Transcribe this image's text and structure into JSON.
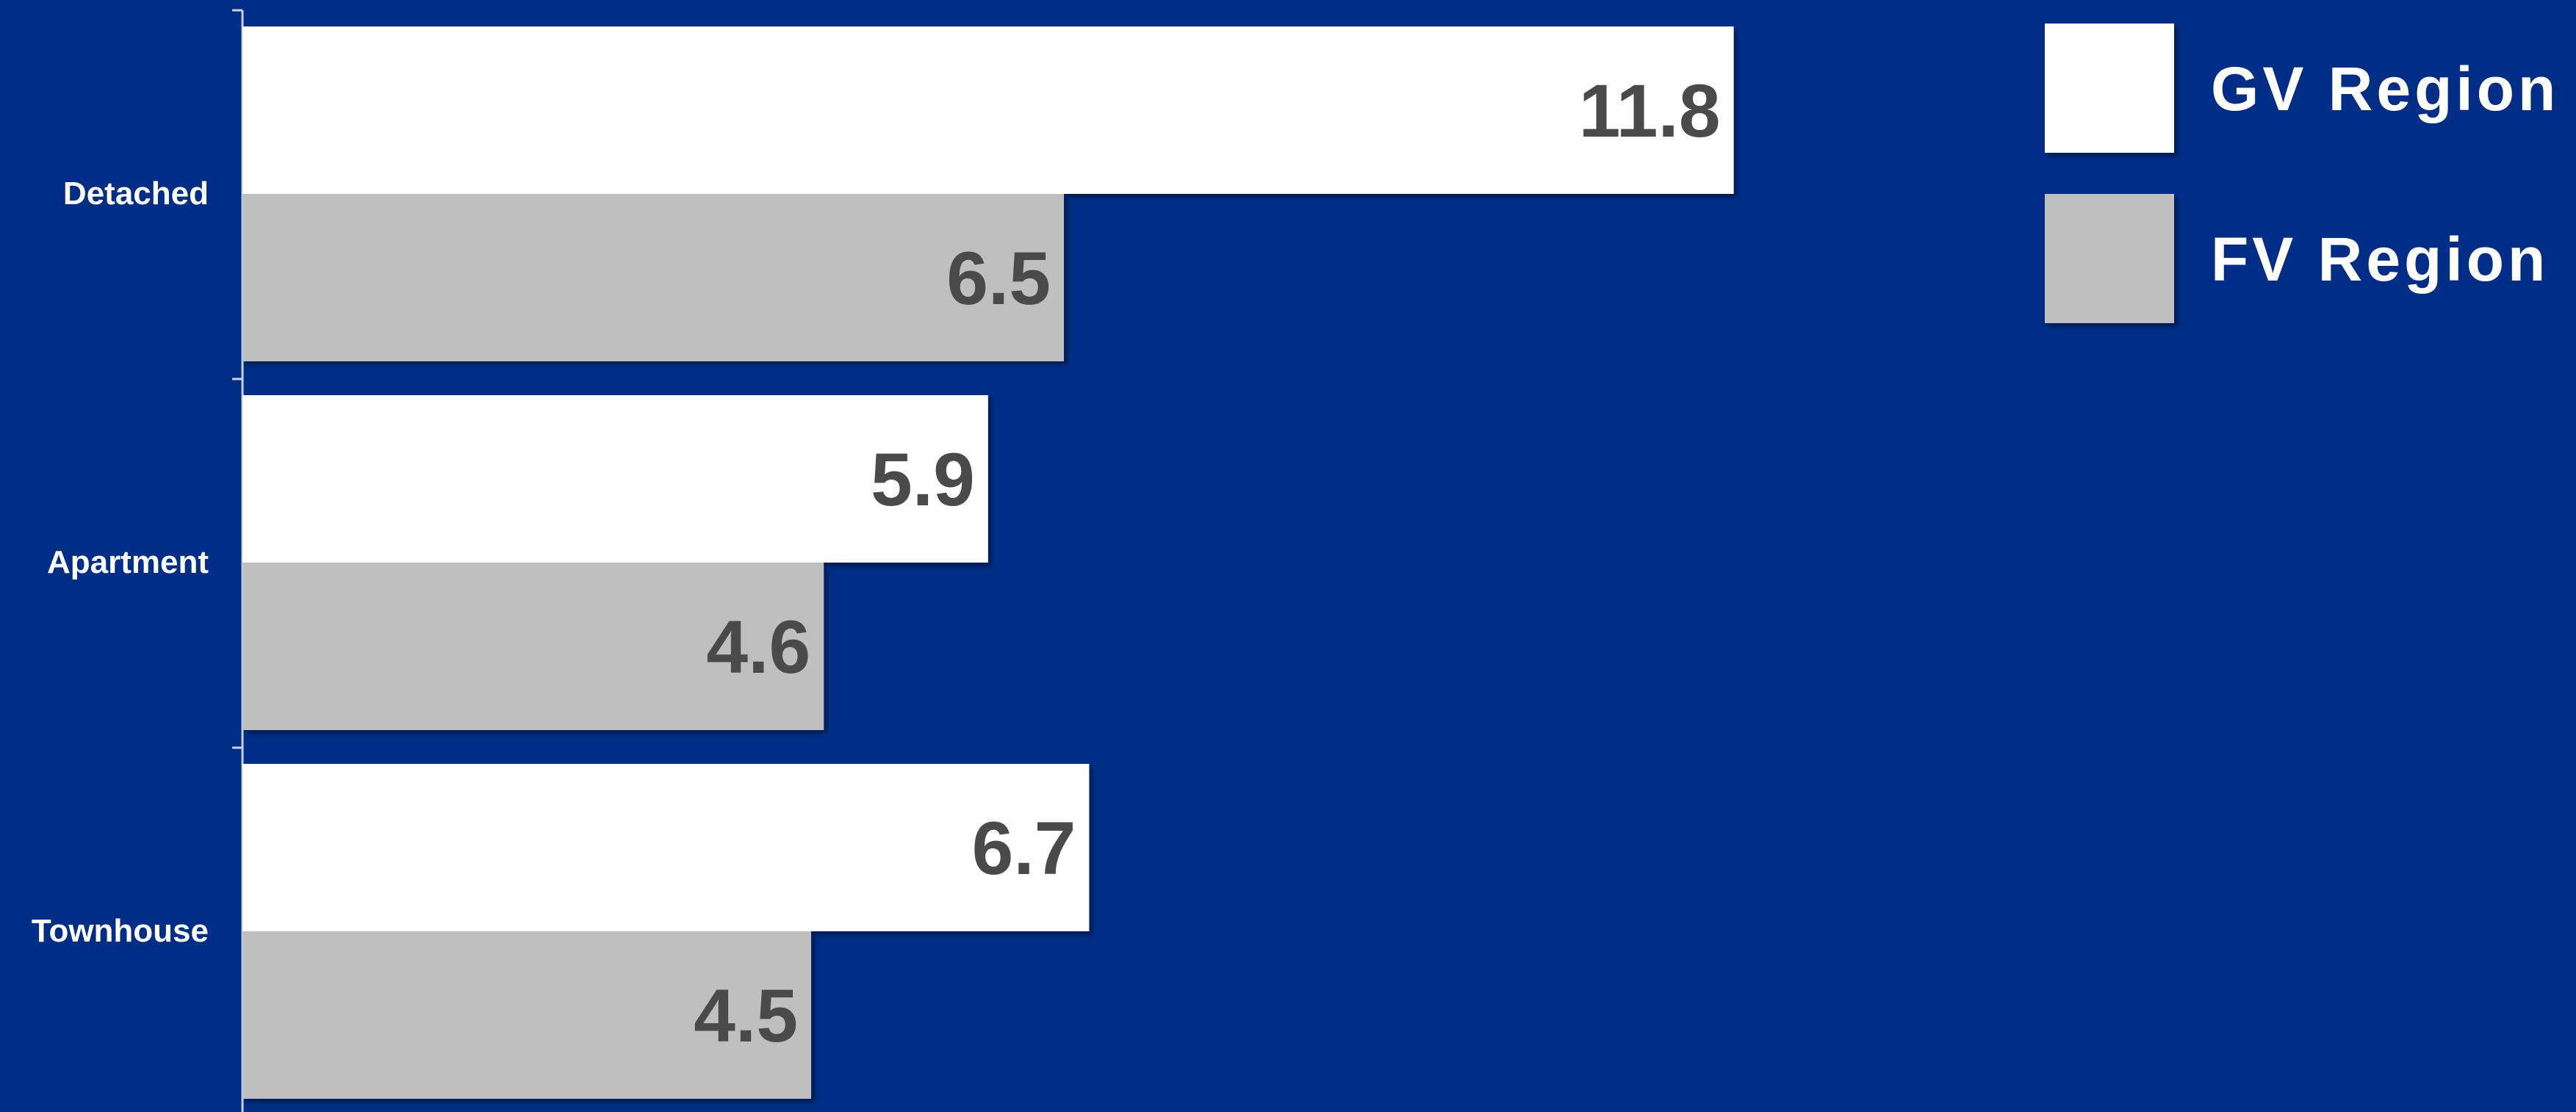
{
  "chart_data": {
    "type": "bar",
    "orientation": "horizontal",
    "categories": [
      "Detached",
      "Apartment",
      "Townhouse"
    ],
    "series": [
      {
        "name": "GV Region",
        "values": [
          11.8,
          5.9,
          6.7
        ],
        "color": "#ffffff"
      },
      {
        "name": "FV Region",
        "values": [
          6.5,
          4.6,
          4.5
        ],
        "color": "#bfbfbf"
      }
    ],
    "title": "",
    "xlabel": "",
    "ylabel": "",
    "xlim": [
      0,
      20.3
    ],
    "grid": false,
    "legend_position": "top-right",
    "data_labels": true,
    "colors": {
      "background": "#002d85",
      "axis": "#c9d1e6",
      "category_label": "#ffffff",
      "value_label": "#4a4a4a",
      "legend_text": "#ffffff"
    }
  }
}
